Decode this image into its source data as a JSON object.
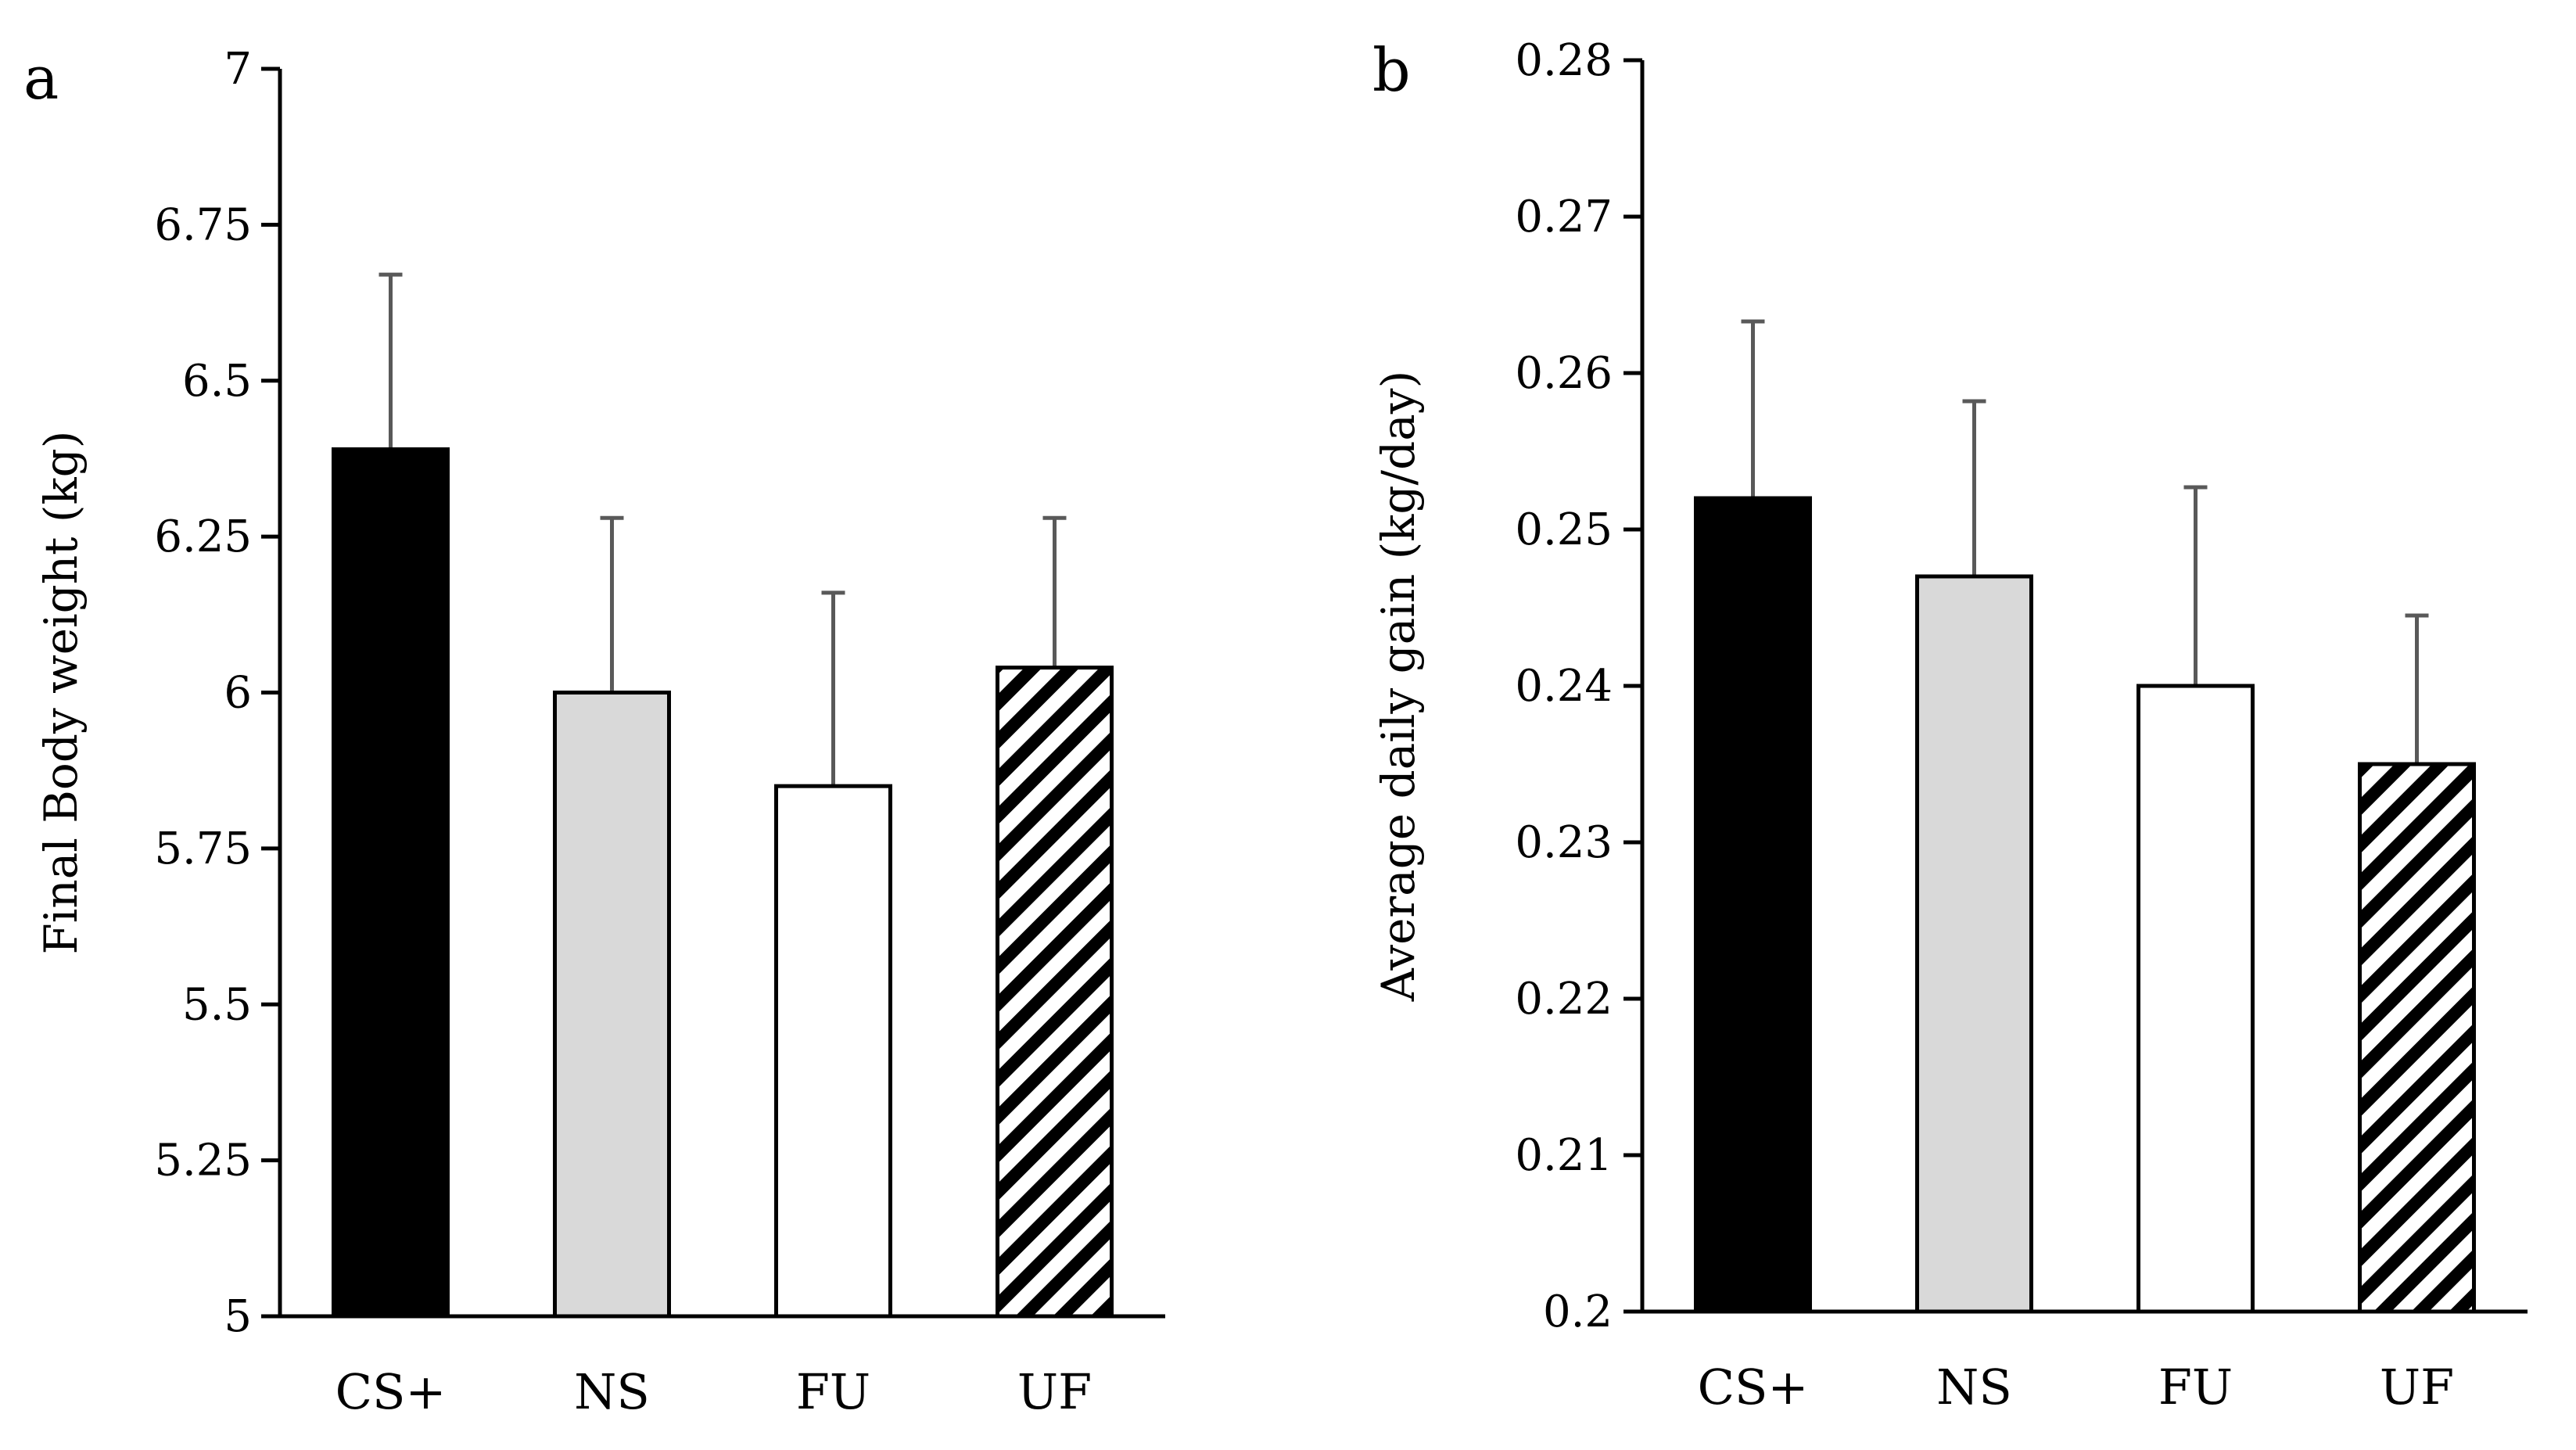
{
  "figure": {
    "colors": {
      "axis": "#000000",
      "error_bar": "#595959",
      "CS+": "#000000",
      "NS": "#d9d9d9",
      "FU": "#ffffff",
      "UF": "hatched"
    }
  },
  "chart_data": [
    {
      "panel": "a",
      "type": "bar",
      "title": "",
      "xlabel": "",
      "ylabel": "Final Body weight (kg)",
      "categories": [
        "CS+",
        "NS",
        "FU",
        "UF"
      ],
      "values": [
        6.39,
        6.0,
        5.85,
        6.04
      ],
      "error_upper": [
        0.28,
        0.28,
        0.31,
        0.24
      ],
      "ylim": [
        5,
        7
      ],
      "yticks": [
        "5",
        "5.25",
        "5.5",
        "5.75",
        "6",
        "6.25",
        "6.5",
        "6.75",
        "7"
      ],
      "ytick_values": [
        5,
        5.25,
        5.5,
        5.75,
        6,
        6.25,
        6.5,
        6.75,
        7
      ],
      "fills": [
        "black",
        "lightgray",
        "white",
        "hatch"
      ]
    },
    {
      "panel": "b",
      "type": "bar",
      "title": "",
      "xlabel": "",
      "ylabel": "Average daily gain (kg/day)",
      "categories": [
        "CS+",
        "NS",
        "FU",
        "UF"
      ],
      "values": [
        0.252,
        0.247,
        0.24,
        0.235
      ],
      "error_upper": [
        0.0113,
        0.0112,
        0.0127,
        0.0095
      ],
      "ylim": [
        0.2,
        0.28
      ],
      "yticks": [
        "0.2",
        "0.21",
        "0.22",
        "0.23",
        "0.24",
        "0.25",
        "0.26",
        "0.27",
        "0.28"
      ],
      "ytick_values": [
        0.2,
        0.21,
        0.22,
        0.23,
        0.24,
        0.25,
        0.26,
        0.27,
        0.28
      ],
      "fills": [
        "black",
        "lightgray",
        "white",
        "hatch"
      ]
    }
  ]
}
